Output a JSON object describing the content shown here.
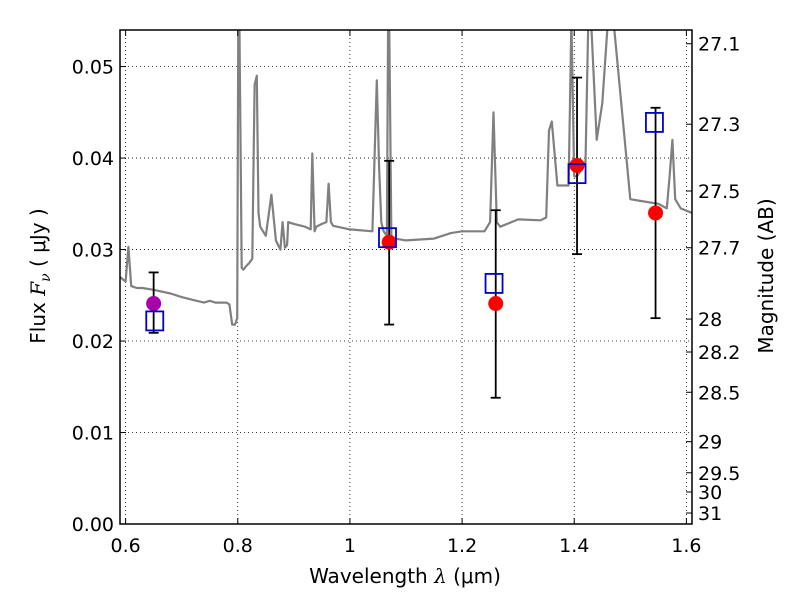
{
  "chart_data": {
    "type": "scatter",
    "title": "",
    "xlabel": "Wavelength  λ (μm)",
    "ylabel": "Flux  F_ν  ( μJy )",
    "ylabel_parts": {
      "prefix": "Flux  ",
      "symbol": "F",
      "subscript": "ν",
      "units": "  ( μJy )"
    },
    "xlabel_parts": {
      "prefix": "Wavelength  ",
      "symbol": "λ",
      "units": " (μm)"
    },
    "y2label": "Magnitude (AB)",
    "xlim": [
      0.59,
      1.61
    ],
    "ylim": [
      0.0,
      0.054
    ],
    "grid": true,
    "x_ticks": [
      0.6,
      0.8,
      1.0,
      1.2,
      1.4,
      1.6
    ],
    "x_tick_labels": [
      "0.6",
      "0.8",
      "1",
      "1.2",
      "1.4",
      "1.6"
    ],
    "y_ticks": [
      0.0,
      0.01,
      0.02,
      0.03,
      0.04,
      0.05
    ],
    "y_tick_labels": [
      "0.00",
      "0.01",
      "0.02",
      "0.03",
      "0.04",
      "0.05"
    ],
    "y2_ticks": [
      {
        "flux": 0.0525,
        "label": "27.1"
      },
      {
        "flux": 0.0437,
        "label": "27.3"
      },
      {
        "flux": 0.0364,
        "label": "27.5"
      },
      {
        "flux": 0.0302,
        "label": "27.7"
      },
      {
        "flux": 0.0224,
        "label": "28"
      },
      {
        "flux": 0.0188,
        "label": "28.2"
      },
      {
        "flux": 0.0144,
        "label": "28.5"
      },
      {
        "flux": 0.009,
        "label": "29"
      },
      {
        "flux": 0.0056,
        "label": "29.5"
      },
      {
        "flux": 0.0035,
        "label": "30"
      },
      {
        "flux": 0.0012,
        "label": "31"
      }
    ],
    "series": [
      {
        "kind": "line",
        "color": "#808080",
        "x": [
          0.59,
          0.6,
          0.605,
          0.61,
          0.62,
          0.63,
          0.65,
          0.68,
          0.7,
          0.72,
          0.74,
          0.75,
          0.76,
          0.78,
          0.785,
          0.79,
          0.795,
          0.799,
          0.801,
          0.803,
          0.807,
          0.81,
          0.815,
          0.82,
          0.826,
          0.83,
          0.834,
          0.837,
          0.84,
          0.85,
          0.86,
          0.868,
          0.872,
          0.876,
          0.88,
          0.884,
          0.888,
          0.89,
          0.9,
          0.92,
          0.93,
          0.933,
          0.937,
          0.94,
          0.95,
          0.958,
          0.962,
          0.966,
          0.97,
          1.0,
          1.04,
          1.048,
          1.052,
          1.056,
          1.06,
          1.066,
          1.068,
          1.07,
          1.074,
          1.076,
          1.078,
          1.08,
          1.1,
          1.15,
          1.18,
          1.2,
          1.24,
          1.25,
          1.256,
          1.262,
          1.268,
          1.3,
          1.34,
          1.35,
          1.355,
          1.36,
          1.37,
          1.39,
          1.395,
          1.4,
          1.405,
          1.41,
          1.415,
          1.42,
          1.425,
          1.43,
          1.44,
          1.45,
          1.46,
          1.47,
          1.5,
          1.53,
          1.55,
          1.565,
          1.57,
          1.575,
          1.58,
          1.59,
          1.61
        ],
        "y": [
          0.027,
          0.0265,
          0.0303,
          0.026,
          0.0258,
          0.0258,
          0.0256,
          0.0252,
          0.0248,
          0.0245,
          0.0242,
          0.0244,
          0.0242,
          0.0242,
          0.024,
          0.0218,
          0.0218,
          0.0225,
          0.055,
          0.055,
          0.028,
          0.0278,
          0.0282,
          0.0285,
          0.029,
          0.048,
          0.049,
          0.034,
          0.0325,
          0.0315,
          0.036,
          0.031,
          0.0305,
          0.03,
          0.033,
          0.0302,
          0.0305,
          0.033,
          0.0328,
          0.0325,
          0.0322,
          0.0405,
          0.032,
          0.0325,
          0.0328,
          0.033,
          0.0372,
          0.033,
          0.0326,
          0.0322,
          0.032,
          0.0485,
          0.039,
          0.033,
          0.032,
          0.0315,
          0.055,
          0.055,
          0.031,
          0.0305,
          0.031,
          0.0312,
          0.031,
          0.0312,
          0.0318,
          0.032,
          0.032,
          0.033,
          0.045,
          0.033,
          0.0325,
          0.0333,
          0.0332,
          0.0335,
          0.043,
          0.044,
          0.037,
          0.037,
          0.055,
          0.038,
          0.038,
          0.0385,
          0.0395,
          0.0395,
          0.055,
          0.055,
          0.042,
          0.046,
          0.055,
          0.055,
          0.0355,
          0.0352,
          0.035,
          0.0345,
          0.038,
          0.042,
          0.0355,
          0.0345,
          0.034
        ]
      },
      {
        "kind": "points",
        "marker": "circle",
        "color": "#ff0000",
        "x": [
          0.65,
          1.07,
          1.26,
          1.405,
          1.545
        ],
        "y": [
          0.0241,
          0.0308,
          0.0241,
          0.0392,
          0.034
        ],
        "point_colors": [
          "#aa00aa",
          "#ff0000",
          "#ff0000",
          "#ff0000",
          "#ff0000"
        ],
        "yerr_low": [
          0.0032,
          0.009,
          0.0103,
          0.0097,
          0.0115
        ],
        "yerr_high": [
          0.0034,
          0.0089,
          0.0102,
          0.0096,
          0.0115
        ]
      },
      {
        "kind": "points",
        "marker": "open-square",
        "color": "#0000cc",
        "x": [
          0.652,
          1.067,
          1.257,
          1.405,
          1.543
        ],
        "y": [
          0.0222,
          0.0313,
          0.0263,
          0.0383,
          0.0439
        ]
      }
    ]
  }
}
